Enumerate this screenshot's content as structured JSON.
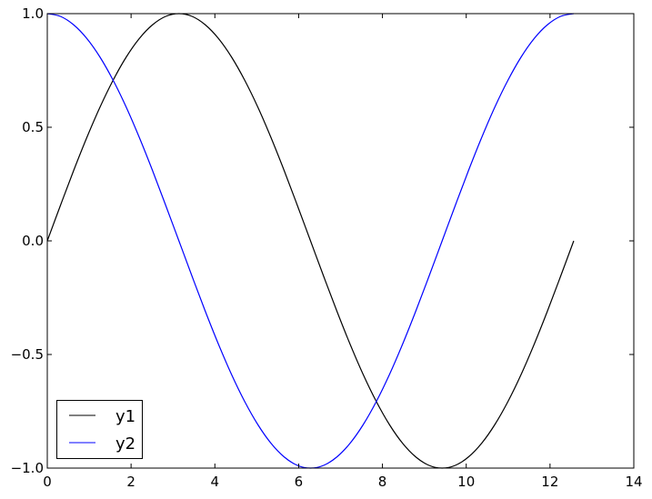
{
  "chart_data": {
    "type": "line",
    "title": "",
    "xlabel": "",
    "ylabel": "",
    "xlim": [
      0,
      14
    ],
    "ylim": [
      -1.0,
      1.0
    ],
    "grid": false,
    "legend_position": "lower-left",
    "x_ticks": [
      "0",
      "2",
      "4",
      "6",
      "8",
      "10",
      "12",
      "14"
    ],
    "x_tick_values": [
      0,
      2,
      4,
      6,
      8,
      10,
      12,
      14
    ],
    "y_ticks": [
      "−1.0",
      "−0.5",
      "0.0",
      "0.5",
      "1.0"
    ],
    "y_tick_values": [
      -1.0,
      -0.5,
      0.0,
      0.5,
      1.0
    ],
    "x": [
      0,
      0.314,
      0.628,
      0.942,
      1.257,
      1.571,
      1.885,
      2.199,
      2.513,
      2.827,
      3.142,
      3.456,
      3.77,
      4.084,
      4.398,
      4.712,
      5.027,
      5.341,
      5.655,
      5.969,
      6.283,
      6.597,
      6.912,
      7.226,
      7.54,
      7.854,
      8.168,
      8.482,
      8.796,
      9.111,
      9.425,
      9.739,
      10.053,
      10.367,
      10.681,
      10.996,
      11.31,
      11.624,
      11.938,
      12.252,
      12.566
    ],
    "series": [
      {
        "name": "y1",
        "color": "#000000",
        "values": [
          0,
          0.156,
          0.309,
          0.454,
          0.588,
          0.707,
          0.809,
          0.891,
          0.951,
          0.988,
          1,
          0.988,
          0.951,
          0.891,
          0.809,
          0.707,
          0.588,
          0.454,
          0.309,
          0.156,
          0,
          -0.156,
          -0.309,
          -0.454,
          -0.588,
          -0.707,
          -0.809,
          -0.891,
          -0.951,
          -0.988,
          -1,
          -0.988,
          -0.951,
          -0.891,
          -0.809,
          -0.707,
          -0.588,
          -0.454,
          -0.309,
          -0.156,
          0
        ]
      },
      {
        "name": "y2",
        "color": "#0000ff",
        "values": [
          1,
          0.988,
          0.951,
          0.891,
          0.809,
          0.707,
          0.588,
          0.454,
          0.309,
          0.156,
          0,
          -0.156,
          -0.309,
          -0.454,
          -0.588,
          -0.707,
          -0.809,
          -0.891,
          -0.951,
          -0.988,
          -1,
          -0.988,
          -0.951,
          -0.891,
          -0.809,
          -0.707,
          -0.588,
          -0.454,
          -0.309,
          -0.156,
          0,
          0.156,
          0.309,
          0.454,
          0.588,
          0.707,
          0.809,
          0.891,
          0.951,
          0.988,
          1
        ]
      }
    ]
  }
}
